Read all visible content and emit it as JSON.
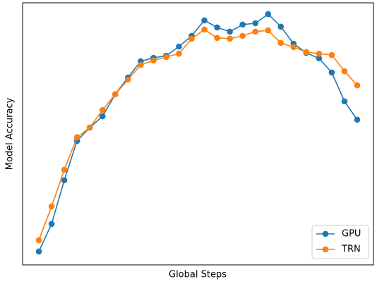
{
  "chart_data": {
    "type": "line",
    "xlabel": "Global Steps",
    "ylabel": "Model Accuracy",
    "categories": [
      null,
      null,
      null,
      null,
      null,
      null,
      null,
      null,
      null,
      null,
      null,
      null,
      null,
      null,
      null,
      null,
      null,
      null,
      null,
      null,
      null,
      null,
      null,
      null,
      null,
      null
    ],
    "series": [
      {
        "name": "GPU",
        "color": "#1f77b4",
        "values": [
          5.1,
          15.6,
          32.3,
          47.3,
          52.4,
          56.7,
          65.1,
          71.5,
          77.7,
          79.0,
          79.8,
          83.3,
          87.4,
          93.3,
          90.6,
          89.0,
          91.7,
          92.2,
          95.7,
          90.9,
          84.4,
          80.9,
          78.8,
          73.4,
          62.4,
          55.4
        ]
      },
      {
        "name": "TRN",
        "color": "#ff7f0e",
        "values": [
          9.4,
          22.3,
          36.3,
          48.7,
          52.4,
          59.1,
          65.1,
          70.7,
          76.3,
          78.0,
          79.3,
          80.6,
          86.3,
          89.8,
          86.6,
          86.3,
          87.4,
          89.0,
          89.5,
          84.7,
          83.1,
          81.2,
          80.6,
          80.1,
          73.9,
          68.5
        ]
      }
    ],
    "ylim": [
      0,
      100
    ],
    "legend": "lower right"
  }
}
